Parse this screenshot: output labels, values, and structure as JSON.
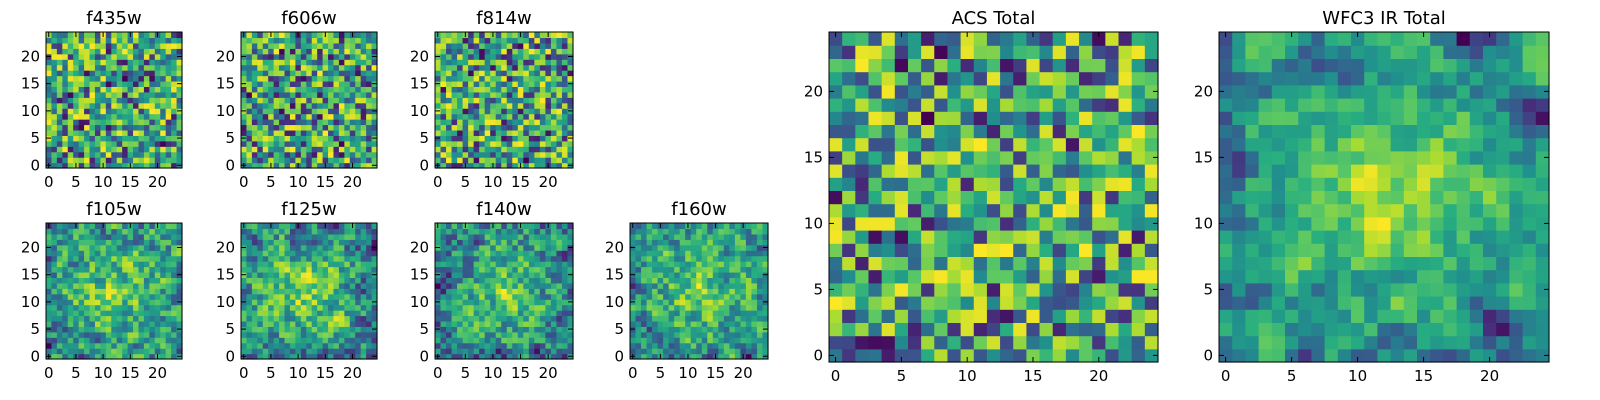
{
  "chart_data": [
    {
      "type": "heatmap",
      "title": "f435w",
      "size": 25,
      "xticks": [
        0,
        5,
        10,
        15,
        20
      ],
      "yticks": [
        0,
        5,
        10,
        15,
        20
      ],
      "xlim": [
        -0.5,
        24.5
      ],
      "ylim": [
        -0.5,
        24.5
      ],
      "colormap": "viridis",
      "colorbar": false,
      "value_range": [
        0,
        1
      ],
      "seed": 11,
      "smooth": 0
    },
    {
      "type": "heatmap",
      "title": "f606w",
      "size": 25,
      "xticks": [
        0,
        5,
        10,
        15,
        20
      ],
      "yticks": [
        0,
        5,
        10,
        15,
        20
      ],
      "xlim": [
        -0.5,
        24.5
      ],
      "ylim": [
        -0.5,
        24.5
      ],
      "colormap": "viridis",
      "colorbar": false,
      "value_range": [
        0,
        1
      ],
      "seed": 23,
      "smooth": 0
    },
    {
      "type": "heatmap",
      "title": "f814w",
      "size": 25,
      "xticks": [
        0,
        5,
        10,
        15,
        20
      ],
      "yticks": [
        0,
        5,
        10,
        15,
        20
      ],
      "xlim": [
        -0.5,
        24.5
      ],
      "ylim": [
        -0.5,
        24.5
      ],
      "colormap": "viridis",
      "colorbar": false,
      "value_range": [
        0,
        1
      ],
      "seed": 37,
      "smooth": 0
    },
    {
      "type": "heatmap",
      "title": "f105w",
      "size": 25,
      "xticks": [
        0,
        5,
        10,
        15,
        20
      ],
      "yticks": [
        0,
        5,
        10,
        15,
        20
      ],
      "xlim": [
        -0.5,
        24.5
      ],
      "ylim": [
        -0.5,
        24.5
      ],
      "colormap": "viridis",
      "colorbar": false,
      "value_range": [
        0,
        1
      ],
      "seed": 41,
      "smooth": 1
    },
    {
      "type": "heatmap",
      "title": "f125w",
      "size": 25,
      "xticks": [
        0,
        5,
        10,
        15,
        20
      ],
      "yticks": [
        0,
        5,
        10,
        15,
        20
      ],
      "xlim": [
        -0.5,
        24.5
      ],
      "ylim": [
        -0.5,
        24.5
      ],
      "colormap": "viridis",
      "colorbar": false,
      "value_range": [
        0,
        1
      ],
      "seed": 53,
      "smooth": 1
    },
    {
      "type": "heatmap",
      "title": "f140w",
      "size": 25,
      "xticks": [
        0,
        5,
        10,
        15,
        20
      ],
      "yticks": [
        0,
        5,
        10,
        15,
        20
      ],
      "xlim": [
        -0.5,
        24.5
      ],
      "ylim": [
        -0.5,
        24.5
      ],
      "colormap": "viridis",
      "colorbar": false,
      "value_range": [
        0,
        1
      ],
      "seed": 67,
      "smooth": 1
    },
    {
      "type": "heatmap",
      "title": "f160w",
      "size": 25,
      "xticks": [
        0,
        5,
        10,
        15,
        20
      ],
      "yticks": [
        0,
        5,
        10,
        15,
        20
      ],
      "xlim": [
        -0.5,
        24.5
      ],
      "ylim": [
        -0.5,
        24.5
      ],
      "colormap": "viridis",
      "colorbar": false,
      "value_range": [
        0,
        1
      ],
      "seed": 79,
      "smooth": 1
    },
    {
      "type": "heatmap",
      "title": "ACS Total",
      "size": 25,
      "xticks": [
        0,
        5,
        10,
        15,
        20
      ],
      "yticks": [
        0,
        5,
        10,
        15,
        20
      ],
      "xlim": [
        -0.5,
        24.5
      ],
      "ylim": [
        -0.5,
        24.5
      ],
      "colormap": "viridis",
      "colorbar": false,
      "value_range": [
        0,
        1
      ],
      "seed": 97,
      "smooth": 0
    },
    {
      "type": "heatmap",
      "title": "WFC3 IR Total",
      "size": 25,
      "xticks": [
        0,
        5,
        10,
        15,
        20
      ],
      "yticks": [
        0,
        5,
        10,
        15,
        20
      ],
      "xlim": [
        -0.5,
        24.5
      ],
      "ylim": [
        -0.5,
        24.5
      ],
      "colormap": "viridis",
      "colorbar": false,
      "value_range": [
        0,
        1
      ],
      "seed": 113,
      "smooth": 2
    }
  ]
}
